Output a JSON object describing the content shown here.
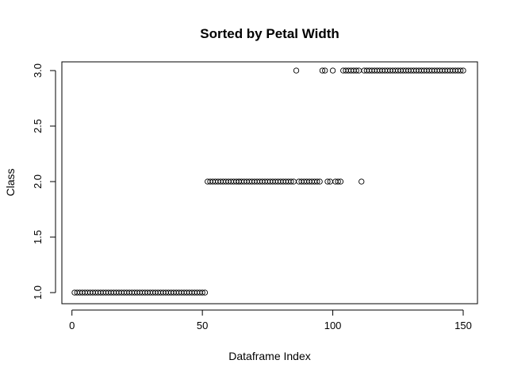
{
  "chart_data": {
    "type": "scatter",
    "title": "Sorted by Petal Width",
    "xlabel": "Dataframe Index",
    "ylabel": "Class",
    "xlim": [
      1,
      150
    ],
    "ylim": [
      1.0,
      3.0
    ],
    "x_ticks": [
      0,
      50,
      100,
      150
    ],
    "x_tick_labels": [
      "0",
      "50",
      "100",
      "150"
    ],
    "y_ticks": [
      1.0,
      1.5,
      2.0,
      2.5,
      3.0
    ],
    "y_tick_labels": [
      "1.0",
      "1.5",
      "2.0",
      "2.5",
      "3.0"
    ],
    "grid": false,
    "legend": "none",
    "marker": "open-circle",
    "series": [
      {
        "x": [
          1,
          2,
          3,
          4,
          5,
          6,
          7,
          8,
          9,
          10,
          11,
          12,
          13,
          14,
          15,
          16,
          17,
          18,
          19,
          20,
          21,
          22,
          23,
          24,
          25,
          26,
          27,
          28,
          29,
          30,
          31,
          32,
          33,
          34,
          35,
          36,
          37,
          38,
          39,
          40,
          41,
          42,
          43,
          44,
          45,
          46,
          47,
          48,
          49,
          50,
          51,
          52,
          53,
          54,
          55,
          56,
          57,
          58,
          59,
          60,
          61,
          62,
          63,
          64,
          64,
          65,
          66,
          67,
          68,
          69,
          70,
          71,
          72,
          73,
          74,
          75,
          76,
          77,
          78,
          79,
          80,
          81,
          82,
          83,
          84,
          85,
          86,
          87,
          88,
          89,
          90,
          91,
          92,
          93,
          94,
          95,
          96,
          97,
          98,
          99,
          100,
          101,
          102,
          103,
          104,
          105,
          106,
          107,
          108,
          109,
          110,
          111,
          112,
          113,
          114,
          115,
          116,
          117,
          118,
          119,
          120,
          121,
          122,
          123,
          124,
          125,
          126,
          127,
          128,
          129,
          130,
          131,
          132,
          133,
          134,
          135,
          136,
          137,
          138,
          139,
          140,
          141,
          142,
          143,
          144,
          145,
          146,
          147,
          148,
          149,
          150
        ],
        "y": [
          1,
          1,
          1,
          1,
          1,
          1,
          1,
          1,
          1,
          1,
          1,
          1,
          1,
          1,
          1,
          1,
          1,
          1,
          1,
          1,
          1,
          1,
          1,
          1,
          1,
          1,
          1,
          1,
          1,
          1,
          1,
          1,
          1,
          1,
          1,
          1,
          1,
          1,
          1,
          1,
          1,
          1,
          1,
          1,
          1,
          1,
          1,
          1,
          1,
          1,
          1,
          2,
          2,
          2,
          2,
          2,
          2,
          2,
          2,
          2,
          2,
          2,
          2,
          2,
          2,
          2,
          2,
          2,
          2,
          2,
          2,
          2,
          2,
          2,
          2,
          2,
          2,
          2,
          2,
          2,
          2,
          2,
          2,
          2,
          2,
          2,
          3,
          2,
          2,
          2,
          2,
          2,
          2,
          2,
          2,
          2,
          3,
          3,
          2,
          2,
          3,
          2,
          2,
          2,
          3,
          3,
          3,
          3,
          3,
          3,
          3,
          2,
          3,
          3,
          3,
          3,
          3,
          3,
          3,
          3,
          3,
          3,
          3,
          3,
          3,
          3,
          3,
          3,
          3,
          3,
          3,
          3,
          3,
          3,
          3,
          3,
          3,
          3,
          3,
          3,
          3,
          3,
          3,
          3,
          3,
          3,
          3,
          3,
          3,
          3,
          3
        ]
      }
    ]
  }
}
